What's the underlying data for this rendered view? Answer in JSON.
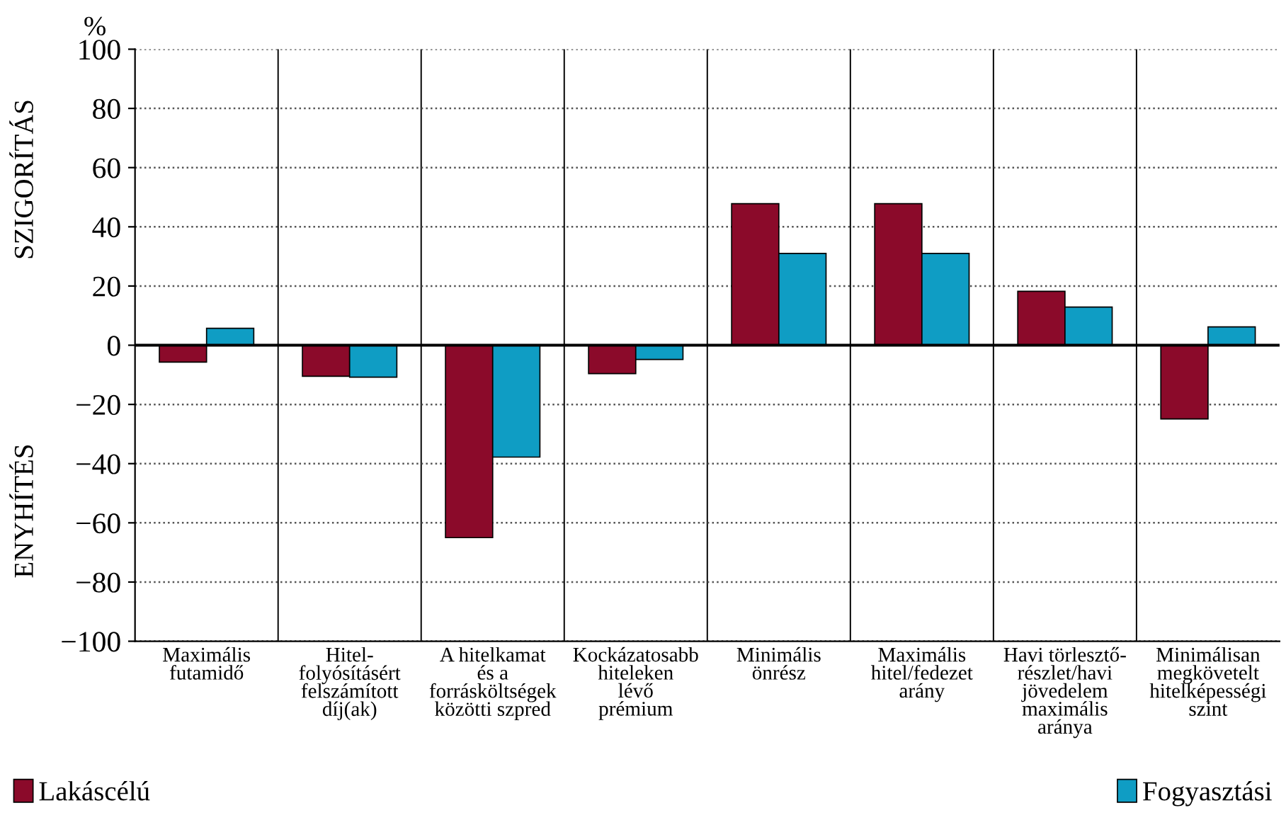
{
  "chart_data": {
    "type": "bar",
    "ylabel": "%",
    "categories": [
      "Maximális\nfutamidő",
      "Hitel-\nfolyósításért\nfelszámított\ndíj(ak)",
      "A hitelkamat\nés a\nforrásköltségek\nközötti szpred",
      "Kockázatosabb\nhiteleken\nlévő\nprémium",
      "Minimális\nönrész",
      "Maximális\nhitel/fedezet\narány",
      "Havi törlesztő-\nrészlet/havi\njövedelem\nmaximális\naránya",
      "Minimálisan\nmegkövetelt\nhitelképességi\nszint"
    ],
    "series": [
      {
        "name": "Lakáscélú",
        "color": "#8b0a2a",
        "values": [
          -5.7,
          -10.5,
          -65,
          -9.6,
          47.8,
          47.8,
          18.2,
          -24.9
        ]
      },
      {
        "name": "Fogyasztási",
        "color": "#0f9dc4",
        "values": [
          5.7,
          -10.8,
          -37.8,
          -4.8,
          31,
          31,
          12.9,
          6.2
        ]
      }
    ],
    "ylim": [
      -100,
      100
    ],
    "yticks": [
      {
        "value": -100,
        "label": "−100"
      },
      {
        "value": -80,
        "label": "−80"
      },
      {
        "value": -60,
        "label": "−60"
      },
      {
        "value": -40,
        "label": "−40"
      },
      {
        "value": -20,
        "label": "−20"
      },
      0,
      20,
      40,
      60,
      80,
      100
    ],
    "annotations": [
      "SZIGORÍTÁS",
      "ENYHÍTÉS"
    ],
    "grid": true,
    "legend": "bottom"
  }
}
